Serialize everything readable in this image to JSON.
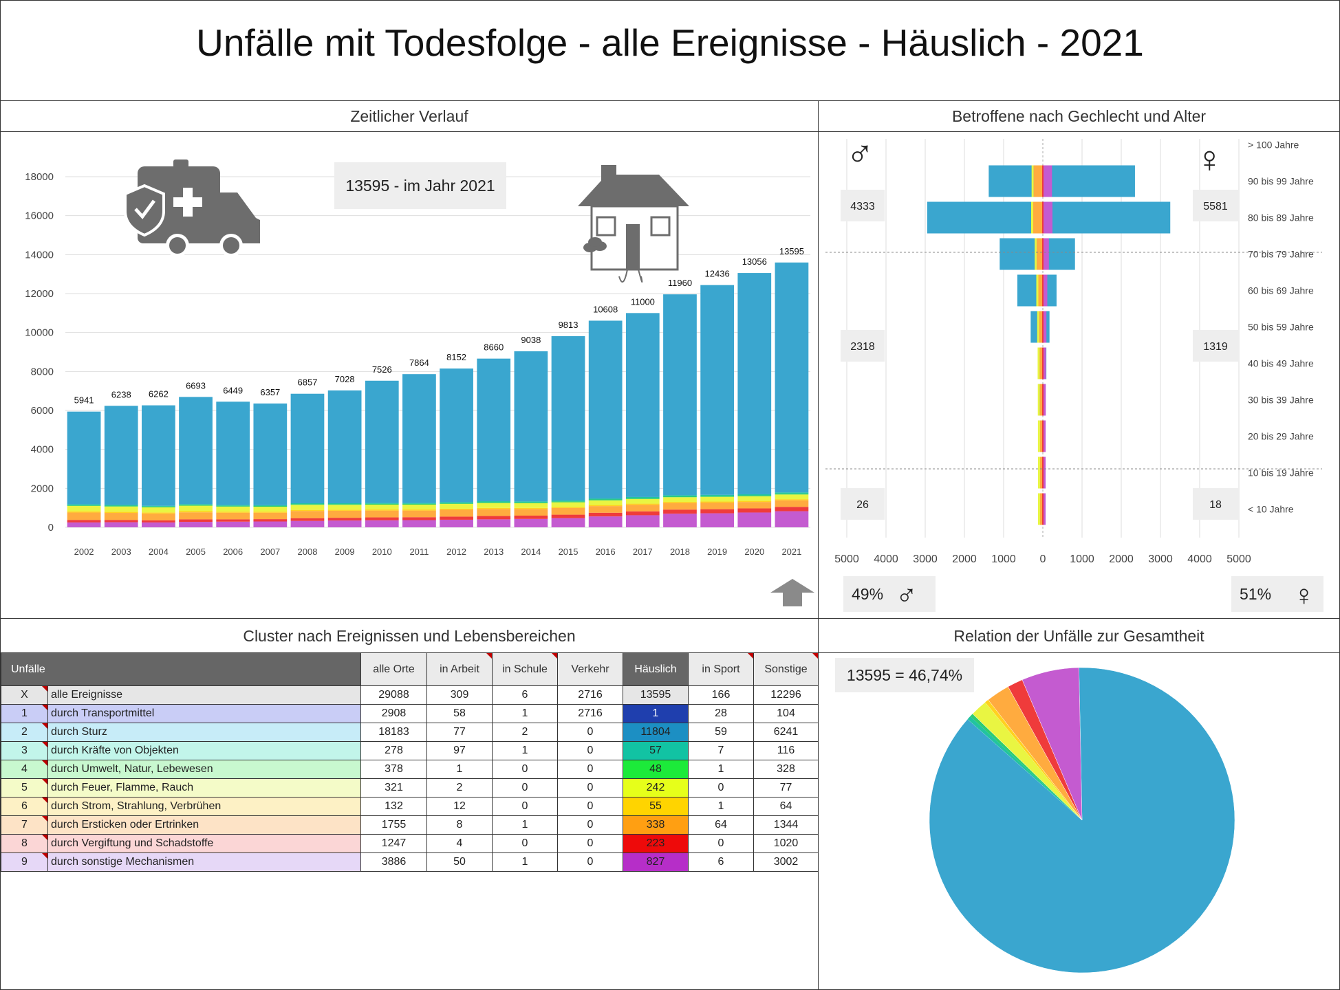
{
  "title": "Unfälle mit Todesfolge - alle Ereignisse - Häuslich - 2021",
  "panels": {
    "timeline_title": "Zeitlicher Verlauf",
    "pyramid_title": "Betroffene nach Gechlecht und Alter",
    "cluster_title": "Cluster nach Ereignissen und Lebensbereichen",
    "relation_title": "Relation der Unfälle zur Gesamtheit"
  },
  "timeline_badge": "13595 - im Jahr 2021",
  "relation_badge": "13595 =  46,74%",
  "pyramid_badges": {
    "male_high": "4333",
    "female_high": "5581",
    "male_mid": "2318",
    "female_mid": "1319",
    "male_low": "26",
    "female_low": "18",
    "male_pct": "49%",
    "female_pct": "51%",
    "male_symbol": "♂",
    "female_symbol": "♀"
  },
  "colors": {
    "blue": "#3aa6cf",
    "green": "#2ecc71",
    "yellow_green": "#e9f542",
    "yellow": "#ffd21f",
    "orange": "#ffab3f",
    "red": "#ef3b3b",
    "purple": "#c45bd0",
    "teal": "#22c3a0"
  },
  "chart_data": [
    {
      "type": "bar",
      "stacked": true,
      "categories": [
        "2002",
        "2003",
        "2004",
        "2005",
        "2006",
        "2007",
        "2008",
        "2009",
        "2010",
        "2011",
        "2012",
        "2013",
        "2014",
        "2015",
        "2016",
        "2017",
        "2018",
        "2019",
        "2020",
        "2021"
      ],
      "totals": [
        5941,
        6238,
        6262,
        6693,
        6449,
        6357,
        6857,
        7028,
        7526,
        7864,
        8152,
        8660,
        9038,
        9813,
        10608,
        11000,
        11960,
        12436,
        13056,
        13595
      ],
      "series": [
        {
          "color": "#c45bd0",
          "values": [
            250,
            260,
            250,
            280,
            290,
            300,
            330,
            350,
            360,
            370,
            390,
            410,
            430,
            470,
            560,
            620,
            700,
            720,
            760,
            827
          ]
        },
        {
          "color": "#ef3b3b",
          "values": [
            130,
            120,
            110,
            130,
            120,
            120,
            140,
            140,
            150,
            150,
            160,
            170,
            170,
            180,
            190,
            200,
            210,
            210,
            210,
            223
          ]
        },
        {
          "color": "#ffab3f",
          "values": [
            380,
            360,
            350,
            360,
            340,
            330,
            370,
            360,
            350,
            340,
            350,
            360,
            340,
            340,
            340,
            340,
            340,
            340,
            330,
            338
          ]
        },
        {
          "color": "#ffd21f",
          "values": [
            60,
            60,
            55,
            60,
            55,
            55,
            55,
            55,
            55,
            55,
            55,
            55,
            55,
            55,
            55,
            55,
            55,
            55,
            55,
            55
          ]
        },
        {
          "color": "#e9f542",
          "values": [
            280,
            270,
            260,
            280,
            260,
            250,
            260,
            250,
            250,
            250,
            250,
            250,
            240,
            240,
            240,
            240,
            240,
            240,
            240,
            242
          ]
        },
        {
          "color": "#2ecc71",
          "values": [
            40,
            40,
            40,
            40,
            40,
            40,
            40,
            40,
            40,
            40,
            40,
            45,
            45,
            45,
            45,
            45,
            45,
            45,
            45,
            48
          ]
        },
        {
          "color": "#22c3a0",
          "values": [
            40,
            40,
            40,
            40,
            40,
            40,
            40,
            40,
            45,
            45,
            45,
            50,
            50,
            50,
            50,
            55,
            55,
            55,
            55,
            57
          ]
        },
        {
          "color": "#3aa6cf",
          "values": [
            4761,
            5088,
            5157,
            5503,
            5304,
            5222,
            5622,
            5793,
            6276,
            6614,
            6862,
            7320,
            7708,
            8433,
            9128,
            9445,
            10315,
            10771,
            11361,
            11805
          ]
        }
      ],
      "ylim": [
        0,
        18000
      ],
      "yticks": [
        0,
        2000,
        4000,
        6000,
        8000,
        10000,
        12000,
        14000,
        16000,
        18000
      ]
    },
    {
      "type": "bar",
      "orientation": "horizontal",
      "categories": [
        "< 10 Jahre",
        "10 bis 19 Jahre",
        "20 bis 29 Jahre",
        "30 bis 39 Jahre",
        "40 bis 49 Jahre",
        "50 bis 59 Jahre",
        "60 bis 69 Jahre",
        "70 bis 79 Jahre",
        "80 bis 89 Jahre",
        "90 bis 99 Jahre",
        "> 100 Jahre"
      ],
      "male": [
        10,
        16,
        40,
        80,
        130,
        310,
        650,
        1100,
        2950,
        1380,
        0
      ],
      "female": [
        8,
        10,
        15,
        40,
        90,
        170,
        350,
        820,
        3250,
        2350,
        0
      ],
      "xticks": [
        5000,
        4000,
        3000,
        2000,
        1000,
        0,
        1000,
        2000,
        3000,
        4000,
        5000
      ],
      "xlim": [
        -5000,
        5000
      ]
    },
    {
      "type": "pie",
      "labels": [
        "durch Transportmittel",
        "durch Sturz",
        "durch Kräfte von Objekten",
        "durch Umwelt, Natur, Lebewesen",
        "durch Feuer, Flamme, Rauch",
        "durch Strom, Strahlung, Verbrühen",
        "durch Ersticken oder Ertrinken",
        "durch Vergiftung und Schadstoffe",
        "durch sonstige Mechanismen"
      ],
      "values": [
        1,
        11804,
        57,
        48,
        242,
        55,
        338,
        223,
        827
      ],
      "colors": [
        "#1f3fae",
        "#3aa6cf",
        "#22c3a0",
        "#2ecc71",
        "#e9f542",
        "#ffd21f",
        "#ffab3f",
        "#ef3b3b",
        "#c45bd0"
      ]
    }
  ],
  "table": {
    "headers": [
      "Unfälle",
      "alle Orte",
      "in Arbeit",
      "in Schule",
      "Verkehr",
      "Häuslich",
      "in Sport",
      "Sonstige"
    ],
    "rows": [
      {
        "code": "X",
        "label": "alle Ereignisse",
        "vals": [
          "29088",
          "309",
          "6",
          "2716",
          "13595",
          "166",
          "12296"
        ],
        "bg": "#e6e6e6",
        "hc": "#e6e6e6"
      },
      {
        "code": "1",
        "label": "durch Transportmittel",
        "vals": [
          "2908",
          "58",
          "1",
          "2716",
          "1",
          "28",
          "104"
        ],
        "bg": "#c9cdf6",
        "hc": "#1f3fae"
      },
      {
        "code": "2",
        "label": "durch Sturz",
        "vals": [
          "18183",
          "77",
          "2",
          "0",
          "11804",
          "59",
          "6241"
        ],
        "bg": "#c7ecf8",
        "hc": "#1c8fc3"
      },
      {
        "code": "3",
        "label": "durch Kräfte von Objekten",
        "vals": [
          "278",
          "97",
          "1",
          "0",
          "57",
          "7",
          "116"
        ],
        "bg": "#c2f5ea",
        "hc": "#12c3a3"
      },
      {
        "code": "4",
        "label": "durch Umwelt, Natur, Lebewesen",
        "vals": [
          "378",
          "1",
          "0",
          "0",
          "48",
          "1",
          "328"
        ],
        "bg": "#c8f8cf",
        "hc": "#1cea3a"
      },
      {
        "code": "5",
        "label": "durch Feuer, Flamme, Rauch",
        "vals": [
          "321",
          "2",
          "0",
          "0",
          "242",
          "0",
          "77"
        ],
        "bg": "#f4fbc8",
        "hc": "#e6ff1a"
      },
      {
        "code": "6",
        "label": "durch Strom, Strahlung, Verbrühen",
        "vals": [
          "132",
          "12",
          "0",
          "0",
          "55",
          "1",
          "64"
        ],
        "bg": "#fdf1c5",
        "hc": "#ffd400"
      },
      {
        "code": "7",
        "label": "durch Ersticken oder Ertrinken",
        "vals": [
          "1755",
          "8",
          "1",
          "0",
          "338",
          "64",
          "1344"
        ],
        "bg": "#fde3c6",
        "hc": "#ff9f12"
      },
      {
        "code": "8",
        "label": "durch Vergiftung und Schadstoffe",
        "vals": [
          "1247",
          "4",
          "0",
          "0",
          "223",
          "0",
          "1020"
        ],
        "bg": "#fbd6d6",
        "hc": "#ee0a0a"
      },
      {
        "code": "9",
        "label": "durch sonstige Mechanismen",
        "vals": [
          "3886",
          "50",
          "1",
          "0",
          "827",
          "6",
          "3002"
        ],
        "bg": "#e6d8f7",
        "hc": "#b62ec8"
      }
    ]
  }
}
